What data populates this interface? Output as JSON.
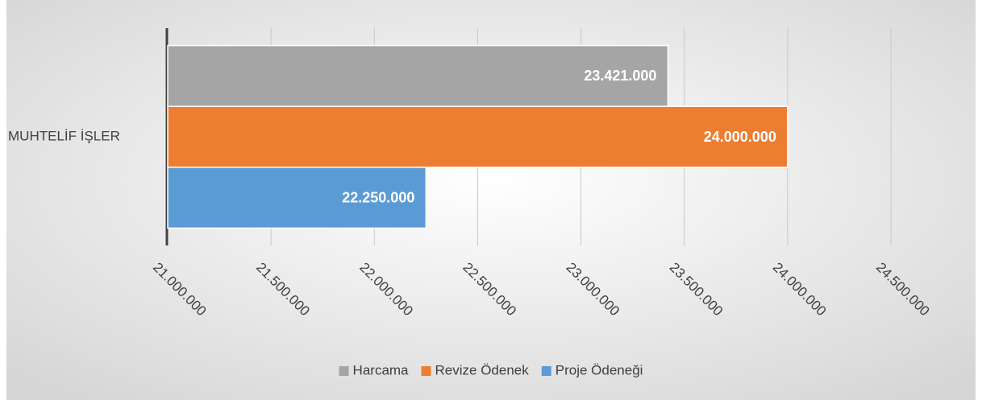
{
  "chart_data": {
    "type": "bar",
    "orientation": "horizontal",
    "categories": [
      "MUHTELİF İŞLER"
    ],
    "series": [
      {
        "name": "Harcama",
        "color": "#a5a5a5",
        "values": [
          23421000
        ],
        "value_labels": [
          "23.421.000"
        ]
      },
      {
        "name": "Revize Ödenek",
        "color": "#ed7d31",
        "values": [
          24000000
        ],
        "value_labels": [
          "24.000.000"
        ]
      },
      {
        "name": "Proje Ödeneği",
        "color": "#5b9bd5",
        "values": [
          22250000
        ],
        "value_labels": [
          "22.250.000"
        ]
      }
    ],
    "xlim": [
      21000000,
      24500000
    ],
    "xticks": [
      {
        "value": 21000000,
        "label": "21.000.000"
      },
      {
        "value": 21500000,
        "label": "21.500.000"
      },
      {
        "value": 22000000,
        "label": "22.000.000"
      },
      {
        "value": 22500000,
        "label": "22.500.000"
      },
      {
        "value": 23000000,
        "label": "23.000.000"
      },
      {
        "value": 23500000,
        "label": "23.500.000"
      },
      {
        "value": 24000000,
        "label": "24.000.000"
      },
      {
        "value": 24500000,
        "label": "24.500.000"
      }
    ],
    "grid": true,
    "legend": "bottom"
  }
}
